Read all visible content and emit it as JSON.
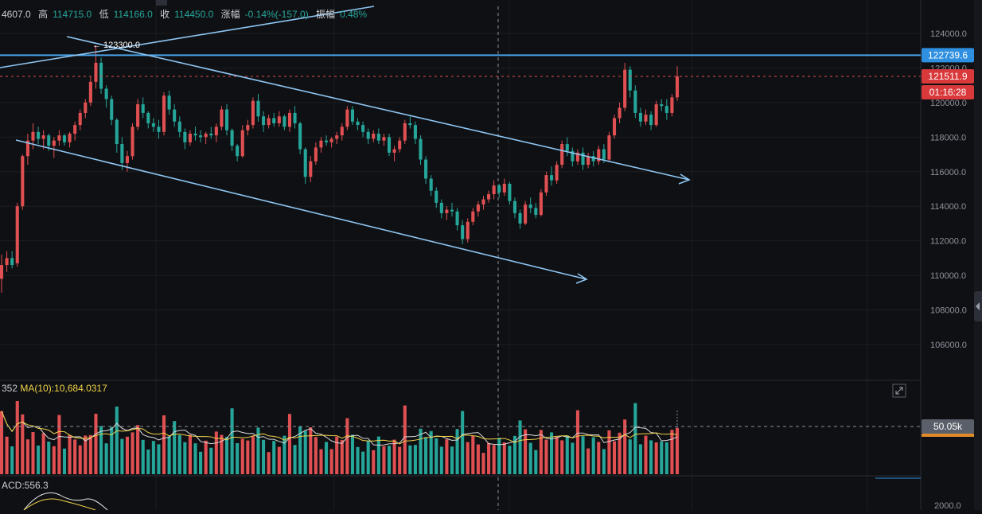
{
  "header": {
    "open_value": "4607.0",
    "high_label": "高",
    "high_value": "114715.0",
    "low_label": "低",
    "low_value": "114166.0",
    "close_label": "收",
    "close_value": "114450.0",
    "change_label": "涨幅",
    "change_value": "-0.14%(-157.0)",
    "amplitude_label": "振幅",
    "amplitude_value": "0.48%"
  },
  "volume_header": {
    "vol_value": "352",
    "ma_label": "MA(10):10,684.0317"
  },
  "macd_header": {
    "label": "ACD:556.3"
  },
  "colors": {
    "up": "#e05052",
    "down": "#26a69a",
    "trendline": "#8ec5f2",
    "hline": "#4aa3ea",
    "ma_line": "#f0d34a",
    "background": "#0f1013"
  },
  "chart_data": {
    "type": "candlestick",
    "price_axis": {
      "ticks": [
        "124000.0",
        "122000.0",
        "120000.0",
        "118000.0",
        "116000.0",
        "114000.0",
        "112000.0",
        "110000.0",
        "108000.0",
        "106000.0"
      ],
      "range": [
        104500,
        125500
      ]
    },
    "price_labels": {
      "horizontal_line": "122739.6",
      "current_price": "121511.9",
      "countdown": "01:16:28"
    },
    "annotation_high": "← 123300.0",
    "candles_ohlc": [
      [
        109800,
        111200,
        109000,
        110600
      ],
      [
        110600,
        111400,
        110200,
        111000
      ],
      [
        111000,
        111400,
        110400,
        110600
      ],
      [
        110700,
        114200,
        110500,
        114000
      ],
      [
        114000,
        117000,
        113800,
        116900
      ],
      [
        116900,
        118200,
        116400,
        117800
      ],
      [
        117800,
        118800,
        117300,
        118300
      ],
      [
        118300,
        118600,
        117600,
        117900
      ],
      [
        117900,
        118400,
        117300,
        118100
      ],
      [
        118100,
        118200,
        117200,
        117500
      ],
      [
        117500,
        118000,
        116800,
        117800
      ],
      [
        117800,
        118400,
        117500,
        118100
      ],
      [
        118100,
        118200,
        117500,
        117700
      ],
      [
        117700,
        118300,
        117400,
        118200
      ],
      [
        118200,
        118900,
        117800,
        118700
      ],
      [
        118700,
        119600,
        118400,
        119400
      ],
      [
        119400,
        120200,
        119100,
        120000
      ],
      [
        120000,
        121500,
        119800,
        121200
      ],
      [
        121200,
        123300,
        120800,
        122300
      ],
      [
        122300,
        122600,
        120500,
        120800
      ],
      [
        120800,
        121000,
        119700,
        120200
      ],
      [
        120200,
        120400,
        118700,
        119000
      ],
      [
        119000,
        119100,
        117100,
        117600
      ],
      [
        117600,
        118000,
        116100,
        116500
      ],
      [
        116500,
        117200,
        116000,
        116900
      ],
      [
        116900,
        118800,
        116700,
        118600
      ],
      [
        118600,
        120200,
        118400,
        119900
      ],
      [
        119900,
        120300,
        119100,
        119400
      ],
      [
        119400,
        119500,
        118500,
        118800
      ],
      [
        118800,
        119100,
        118300,
        118600
      ],
      [
        118600,
        119000,
        117900,
        118300
      ],
      [
        118300,
        120600,
        118100,
        120400
      ],
      [
        120400,
        120700,
        119300,
        119600
      ],
      [
        119600,
        119900,
        118600,
        118900
      ],
      [
        118900,
        119200,
        118000,
        118300
      ],
      [
        118300,
        118500,
        117300,
        117700
      ],
      [
        117700,
        118400,
        117500,
        118200
      ],
      [
        118200,
        118600,
        117800,
        118100
      ],
      [
        118100,
        118400,
        117700,
        118000
      ],
      [
        118000,
        118300,
        117600,
        118200
      ],
      [
        118200,
        118600,
        117900,
        118100
      ],
      [
        118100,
        118800,
        117700,
        118600
      ],
      [
        118600,
        119800,
        118400,
        119600
      ],
      [
        119600,
        119900,
        118100,
        118400
      ],
      [
        118400,
        118500,
        117200,
        117500
      ],
      [
        117500,
        117600,
        116600,
        116900
      ],
      [
        116900,
        118700,
        116800,
        118400
      ],
      [
        118400,
        119000,
        118100,
        118700
      ],
      [
        118700,
        120300,
        118500,
        120100
      ],
      [
        120100,
        120500,
        118900,
        119200
      ],
      [
        119200,
        119500,
        118300,
        118700
      ],
      [
        118700,
        119300,
        118500,
        119100
      ],
      [
        119100,
        119400,
        118600,
        118800
      ],
      [
        118800,
        119500,
        118600,
        119200
      ],
      [
        119200,
        119300,
        118400,
        118600
      ],
      [
        118600,
        119600,
        118300,
        119400
      ],
      [
        119400,
        119800,
        118500,
        118800
      ],
      [
        118800,
        118900,
        117000,
        117300
      ],
      [
        117300,
        117400,
        115300,
        115700
      ],
      [
        115700,
        116900,
        115400,
        116600
      ],
      [
        116600,
        117700,
        116400,
        117400
      ],
      [
        117400,
        118000,
        117100,
        117800
      ],
      [
        117800,
        118100,
        117500,
        117700
      ],
      [
        117700,
        118000,
        117400,
        117900
      ],
      [
        117900,
        118300,
        117600,
        118100
      ],
      [
        118100,
        118800,
        117800,
        118600
      ],
      [
        118600,
        119800,
        118400,
        119600
      ],
      [
        119600,
        119800,
        118700,
        118900
      ],
      [
        118900,
        119100,
        118400,
        118700
      ],
      [
        118700,
        118900,
        118000,
        118300
      ],
      [
        118300,
        118500,
        117600,
        117900
      ],
      [
        117900,
        118400,
        117700,
        118200
      ],
      [
        118200,
        118500,
        117600,
        117800
      ],
      [
        117800,
        118200,
        117500,
        118000
      ],
      [
        118000,
        118200,
        116900,
        117100
      ],
      [
        117100,
        117500,
        116600,
        117300
      ],
      [
        117300,
        118000,
        117100,
        117800
      ],
      [
        117800,
        119000,
        117600,
        118800
      ],
      [
        118800,
        119200,
        118500,
        118700
      ],
      [
        118700,
        118900,
        117600,
        117900
      ],
      [
        117900,
        118100,
        116400,
        116700
      ],
      [
        116700,
        116900,
        115300,
        115600
      ],
      [
        115600,
        115800,
        114600,
        114900
      ],
      [
        114900,
        115100,
        113900,
        114200
      ],
      [
        114200,
        114400,
        113300,
        113600
      ],
      [
        113600,
        114000,
        113200,
        113800
      ],
      [
        113800,
        114200,
        113400,
        113700
      ],
      [
        113700,
        113900,
        112600,
        112900
      ],
      [
        112900,
        113200,
        111800,
        112100
      ],
      [
        112100,
        113300,
        111900,
        113100
      ],
      [
        113100,
        113900,
        112900,
        113700
      ],
      [
        113700,
        114300,
        113400,
        114100
      ],
      [
        114100,
        114600,
        113800,
        114400
      ],
      [
        114400,
        114900,
        114200,
        114700
      ],
      [
        114700,
        115500,
        114400,
        115200
      ],
      [
        115200,
        115300,
        114500,
        114800
      ],
      [
        114800,
        115600,
        114600,
        115300
      ],
      [
        115300,
        115400,
        114100,
        114300
      ],
      [
        114300,
        114500,
        113300,
        113600
      ],
      [
        113600,
        113800,
        112700,
        113000
      ],
      [
        113000,
        114300,
        112900,
        114100
      ],
      [
        114100,
        114500,
        113600,
        113900
      ],
      [
        113900,
        114200,
        113300,
        113500
      ],
      [
        113500,
        115000,
        113400,
        114800
      ],
      [
        114800,
        116000,
        114600,
        115800
      ],
      [
        115800,
        116300,
        115200,
        115500
      ],
      [
        115500,
        116600,
        115300,
        116400
      ],
      [
        116400,
        117800,
        116200,
        117600
      ],
      [
        117600,
        118000,
        116900,
        117200
      ],
      [
        117200,
        117400,
        116300,
        116600
      ],
      [
        116600,
        117300,
        116400,
        117100
      ],
      [
        117100,
        117400,
        116100,
        116400
      ],
      [
        116400,
        117100,
        116200,
        116900
      ],
      [
        116900,
        117200,
        116300,
        116600
      ],
      [
        116600,
        117500,
        116400,
        117300
      ],
      [
        117300,
        117600,
        116500,
        116700
      ],
      [
        116700,
        118300,
        116600,
        118100
      ],
      [
        118100,
        119300,
        117900,
        119100
      ],
      [
        119100,
        120000,
        118800,
        119700
      ],
      [
        119700,
        122300,
        119500,
        121900
      ],
      [
        121900,
        122100,
        120300,
        120700
      ],
      [
        120700,
        121000,
        119100,
        119400
      ],
      [
        119400,
        119700,
        118600,
        118900
      ],
      [
        118900,
        119600,
        118700,
        119300
      ],
      [
        119300,
        119500,
        118400,
        118700
      ],
      [
        118700,
        120100,
        118600,
        119900
      ],
      [
        119900,
        120200,
        119500,
        119800
      ],
      [
        119800,
        120200,
        119000,
        119400
      ],
      [
        119400,
        120500,
        119200,
        120300
      ],
      [
        120300,
        122100,
        120100,
        121512
      ]
    ]
  }
}
